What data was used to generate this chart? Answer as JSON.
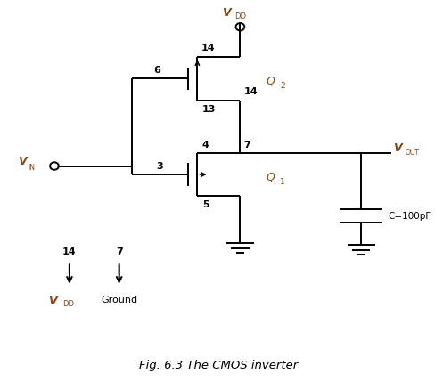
{
  "bg_color": "#ffffff",
  "fig_width": 4.97,
  "fig_height": 4.28,
  "title": "Fig. 6.3 The CMOS inverter",
  "title_fontsize": 9.5,
  "line_color": "#000000",
  "label_color": "#8B4513",
  "cap_label": "C=100pF",
  "ground_label": "Ground",
  "node_color": "#000000"
}
